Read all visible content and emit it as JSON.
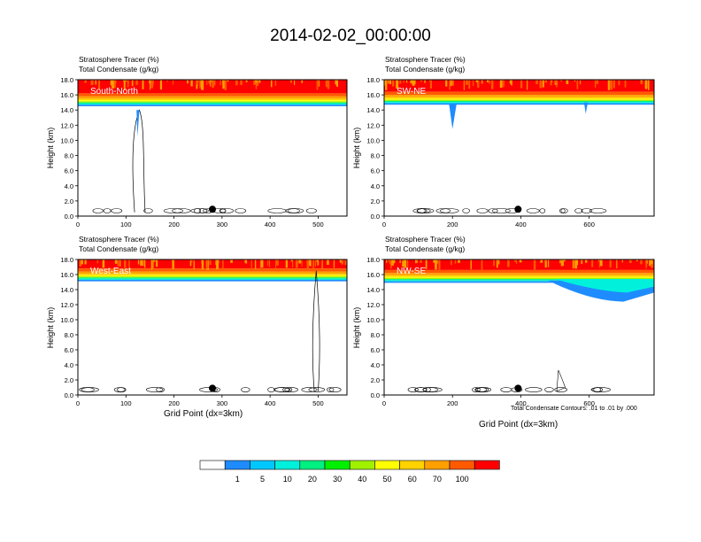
{
  "title": "2014-02-02_00:00:00",
  "panel_labels": {
    "tracer": "Stratosphere Tracer   (%)",
    "condensate": "Total Condensate   (g/kg)"
  },
  "ylabel": "Height (km)",
  "xlabel": "Grid Point (dx=3km)",
  "footnote": "Total Condensate Contours: .01 to .01 by .000",
  "colorbar": {
    "colors": [
      "#ffffff",
      "#1e8cff",
      "#00c8ff",
      "#00f0dc",
      "#00f082",
      "#00f000",
      "#a0f000",
      "#ffff00",
      "#ffd200",
      "#ffa000",
      "#ff5a00",
      "#ff0000"
    ],
    "labels": [
      "1",
      "5",
      "10",
      "20",
      "30",
      "40",
      "50",
      "60",
      "70",
      "100"
    ]
  },
  "chart_data": [
    {
      "type": "heatmap",
      "name": "South-North",
      "ylim": [
        0,
        18
      ],
      "xlim": [
        0,
        560
      ],
      "xticks": [
        "0",
        "100",
        "200",
        "300",
        "400",
        "500"
      ],
      "yticks": [
        "0.0",
        "2.0",
        "4.0",
        "6.0",
        "8.0",
        "10.0",
        "12.0",
        "14.0",
        "16.0",
        "18.0"
      ],
      "tropopause_km": 14.8,
      "marker_x": 280
    },
    {
      "type": "heatmap",
      "name": "SW-NE",
      "ylim": [
        0,
        18
      ],
      "xlim": [
        0,
        790
      ],
      "xticks": [
        "0",
        "200",
        "400",
        "600"
      ],
      "yticks": [
        "0.0",
        "2.0",
        "4.0",
        "6.0",
        "8.0",
        "10.0",
        "12.0",
        "14.0",
        "16.0",
        "18.0"
      ],
      "tropopause_km": 15.0,
      "marker_x": 392
    },
    {
      "type": "heatmap",
      "name": "West-East",
      "ylim": [
        0,
        18
      ],
      "xlim": [
        0,
        560
      ],
      "xticks": [
        "0",
        "100",
        "200",
        "300",
        "400",
        "500"
      ],
      "yticks": [
        "0.0",
        "2.0",
        "4.0",
        "6.0",
        "8.0",
        "10.0",
        "12.0",
        "14.0",
        "16.0",
        "18.0"
      ],
      "tropopause_km": 15.4,
      "marker_x": 280
    },
    {
      "type": "heatmap",
      "name": "NW-SE",
      "ylim": [
        0,
        18
      ],
      "xlim": [
        0,
        790
      ],
      "xticks": [
        "0",
        "200",
        "400",
        "600"
      ],
      "yticks": [
        "0.0",
        "2.0",
        "4.0",
        "6.0",
        "8.0",
        "10.0",
        "12.0",
        "14.0",
        "16.0",
        "18.0"
      ],
      "tropopause_km": 15.2,
      "marker_x": 392
    }
  ]
}
